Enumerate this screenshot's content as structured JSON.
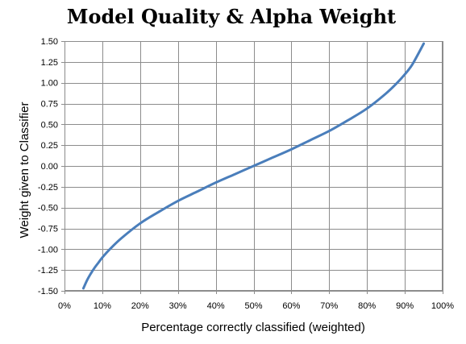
{
  "chart_data": {
    "type": "line",
    "title": "Model Quality & Alpha Weight",
    "xlabel": "Percentage correctly classified (weighted)",
    "ylabel": "Weight given to Classifier",
    "xlim": [
      0,
      1
    ],
    "ylim": [
      -1.5,
      1.5
    ],
    "x_ticks": [
      "0%",
      "10%",
      "20%",
      "30%",
      "40%",
      "50%",
      "60%",
      "70%",
      "80%",
      "90%",
      "100%"
    ],
    "y_ticks": [
      "1.50",
      "1.25",
      "1.00",
      "0.75",
      "0.50",
      "0.25",
      "0.00",
      "-0.25",
      "-0.50",
      "-0.75",
      "-1.00",
      "-1.25",
      "-1.50"
    ],
    "grid": true,
    "legend": "none",
    "series": [
      {
        "color": "#4a7ebb",
        "x": [
          0.05,
          0.06,
          0.07,
          0.08,
          0.09,
          0.1,
          0.12,
          0.15,
          0.2,
          0.25,
          0.3,
          0.35,
          0.4,
          0.45,
          0.5,
          0.55,
          0.6,
          0.65,
          0.7,
          0.75,
          0.8,
          0.85,
          0.88,
          0.9,
          0.92,
          0.95
        ],
        "values": [
          -1.47,
          -1.37,
          -1.29,
          -1.22,
          -1.16,
          -1.1,
          -1.0,
          -0.87,
          -0.69,
          -0.55,
          -0.42,
          -0.31,
          -0.2,
          -0.1,
          0.0,
          0.1,
          0.2,
          0.31,
          0.42,
          0.55,
          0.69,
          0.87,
          1.0,
          1.1,
          1.22,
          1.47
        ]
      }
    ]
  }
}
